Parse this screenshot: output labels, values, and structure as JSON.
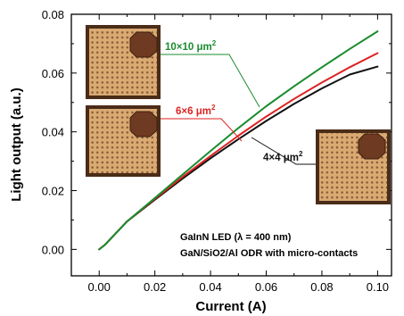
{
  "chart_data": {
    "type": "line",
    "xlabel": "Current (A)",
    "ylabel": "Light output (a.u.)",
    "xlim": [
      -0.01,
      0.105
    ],
    "ylim": [
      -0.009,
      0.08
    ],
    "xticks": [
      0.0,
      0.02,
      0.04,
      0.06,
      0.08,
      0.1
    ],
    "xtick_labels": [
      "0.00",
      "0.02",
      "0.04",
      "0.06",
      "0.08",
      "0.10"
    ],
    "yticks": [
      0.0,
      0.02,
      0.04,
      0.06,
      0.08
    ],
    "ytick_labels": [
      "0.00",
      "0.02",
      "0.04",
      "0.06",
      "0.08"
    ],
    "grid": false,
    "annotations": [
      "GaInN LED (λ = 400 nm)",
      "GaN/SiO2/Al ODR with micro-contacts"
    ],
    "series": [
      {
        "name": "10×10 μm²",
        "label_base": "10×10 μm",
        "label_sup": "2",
        "color": "#1a8c2e",
        "x": [
          0.0,
          0.002,
          0.005,
          0.01,
          0.02,
          0.03,
          0.04,
          0.05,
          0.06,
          0.07,
          0.08,
          0.09,
          0.1
        ],
        "y": [
          0.0,
          0.0015,
          0.0045,
          0.0095,
          0.0175,
          0.0255,
          0.0335,
          0.0413,
          0.0487,
          0.0555,
          0.062,
          0.0682,
          0.0742
        ]
      },
      {
        "name": "6×6 μm²",
        "label_base": "6×6 μm",
        "label_sup": "2",
        "color": "#dd2222",
        "x": [
          0.0,
          0.002,
          0.005,
          0.01,
          0.02,
          0.03,
          0.04,
          0.05,
          0.06,
          0.07,
          0.08,
          0.09,
          0.1
        ],
        "y": [
          0.0,
          0.0015,
          0.0045,
          0.0095,
          0.0172,
          0.0247,
          0.0318,
          0.0387,
          0.0452,
          0.0512,
          0.0568,
          0.062,
          0.0668
        ]
      },
      {
        "name": "4×4 μm²",
        "label_base": "4×4 μm",
        "label_sup": "2",
        "color": "#111111",
        "x": [
          0.0,
          0.002,
          0.005,
          0.01,
          0.02,
          0.03,
          0.04,
          0.05,
          0.06,
          0.07,
          0.08,
          0.09,
          0.1
        ],
        "y": [
          0.0,
          0.0015,
          0.0045,
          0.0095,
          0.0169,
          0.0241,
          0.031,
          0.0375,
          0.0437,
          0.0495,
          0.0548,
          0.0595,
          0.0622
        ]
      }
    ]
  }
}
